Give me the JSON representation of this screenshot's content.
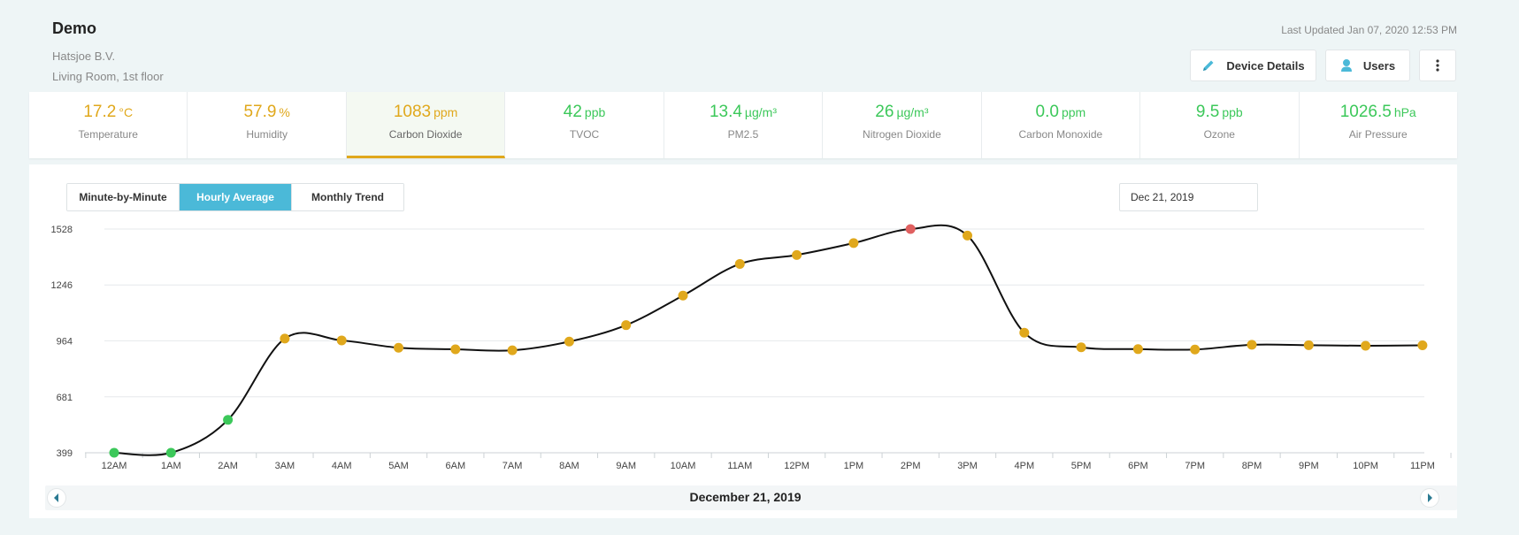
{
  "header": {
    "title": "Demo",
    "company": "Hatsjoe B.V.",
    "location": "Living Room, 1st floor",
    "last_updated": "Last Updated Jan 07, 2020 12:53 PM",
    "device_details_label": "Device Details",
    "users_label": "Users",
    "more_icon": "more-vertical-icon"
  },
  "metrics": [
    {
      "value": "17.2",
      "unit": "°C",
      "label": "Temperature",
      "color": "#e0a81c"
    },
    {
      "value": "57.9",
      "unit": "%",
      "label": "Humidity",
      "color": "#e0a81c"
    },
    {
      "value": "1083",
      "unit": "ppm",
      "label": "Carbon Dioxide",
      "color": "#e0a81c",
      "active": true
    },
    {
      "value": "42",
      "unit": "ppb",
      "label": "TVOC",
      "color": "#3cc85a"
    },
    {
      "value": "13.4",
      "unit": "µg/m³",
      "label": "PM2.5",
      "color": "#3cc85a"
    },
    {
      "value": "26",
      "unit": "µg/m³",
      "label": "Nitrogen Dioxide",
      "color": "#3cc85a"
    },
    {
      "value": "0.0",
      "unit": "ppm",
      "label": "Carbon Monoxide",
      "color": "#3cc85a"
    },
    {
      "value": "9.5",
      "unit": "ppb",
      "label": "Ozone",
      "color": "#3cc85a"
    },
    {
      "value": "1026.5",
      "unit": "hPa",
      "label": "Air Pressure",
      "color": "#3cc85a"
    }
  ],
  "chart_controls": {
    "tabs": [
      "Minute-by-Minute",
      "Hourly Average",
      "Monthly Trend"
    ],
    "active_tab": "Hourly Average",
    "date_value": "Dec 21, 2019"
  },
  "footer": {
    "date": "December 21, 2019"
  },
  "chart_data": {
    "type": "line",
    "title": "",
    "xlabel": "",
    "ylabel": "",
    "categories": [
      "12AM",
      "1AM",
      "2AM",
      "3AM",
      "4AM",
      "5AM",
      "6AM",
      "7AM",
      "8AM",
      "9AM",
      "10AM",
      "11AM",
      "12PM",
      "1PM",
      "2PM",
      "3PM",
      "4PM",
      "5PM",
      "6PM",
      "7PM",
      "8PM",
      "9PM",
      "10PM",
      "11PM"
    ],
    "yticks": [
      399,
      681,
      964,
      1246,
      1528
    ],
    "ylim": [
      399,
      1528
    ],
    "grid": true,
    "line_color": "#111111",
    "series": [
      {
        "values": [
          399,
          399,
          565,
          975,
          966,
          929,
          921,
          916,
          960,
          1043,
          1192,
          1352,
          1397,
          1457,
          1528,
          1495,
          1005,
          931,
          922,
          920,
          944,
          942,
          939,
          941
        ],
        "point_colors": [
          "#3cc85a",
          "#3cc85a",
          "#3cc85a",
          "#e0a81c",
          "#e0a81c",
          "#e0a81c",
          "#e0a81c",
          "#e0a81c",
          "#e0a81c",
          "#e0a81c",
          "#e0a81c",
          "#e0a81c",
          "#e0a81c",
          "#e0a81c",
          "#e06060",
          "#e0a81c",
          "#e0a81c",
          "#e0a81c",
          "#e0a81c",
          "#e0a81c",
          "#e0a81c",
          "#e0a81c",
          "#e0a81c",
          "#e0a81c"
        ]
      }
    ]
  }
}
